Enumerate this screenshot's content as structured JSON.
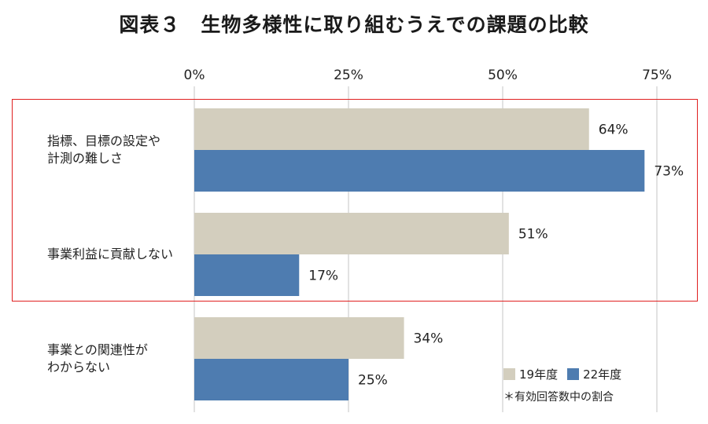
{
  "title": "図表３　生物多様性に取り組むうえでの課題の比較",
  "note": "＊有効回答数中の割合",
  "colors": {
    "series_19": "#d3cebe",
    "series_22": "#4e7cb0",
    "highlight": "#e02020",
    "grid": "#d9d9d9"
  },
  "chart_data": {
    "type": "bar",
    "orientation": "horizontal",
    "categories": [
      "指標、目標の設定や計測の難しさ",
      "事業利益に貢献しない",
      "事業との関連性がわからない"
    ],
    "category_lines": [
      [
        "指標、目標の設定や",
        "計測の難しさ"
      ],
      [
        "事業利益に貢献しない"
      ],
      [
        "事業との関連性が",
        "わからない"
      ]
    ],
    "series": [
      {
        "name": "19年度",
        "values": [
          64,
          51,
          34
        ],
        "labels": [
          "64%",
          "51%",
          "34%"
        ]
      },
      {
        "name": "22年度",
        "values": [
          73,
          17,
          25
        ],
        "labels": [
          "73%",
          "17%",
          "25%"
        ]
      }
    ],
    "xlim": [
      0,
      75
    ],
    "xticks": [
      0,
      25,
      50,
      75
    ],
    "xtick_labels": [
      "0%",
      "25%",
      "50%",
      "75%"
    ],
    "grid": true,
    "legend_position": "bottom-right",
    "unit": "%"
  }
}
